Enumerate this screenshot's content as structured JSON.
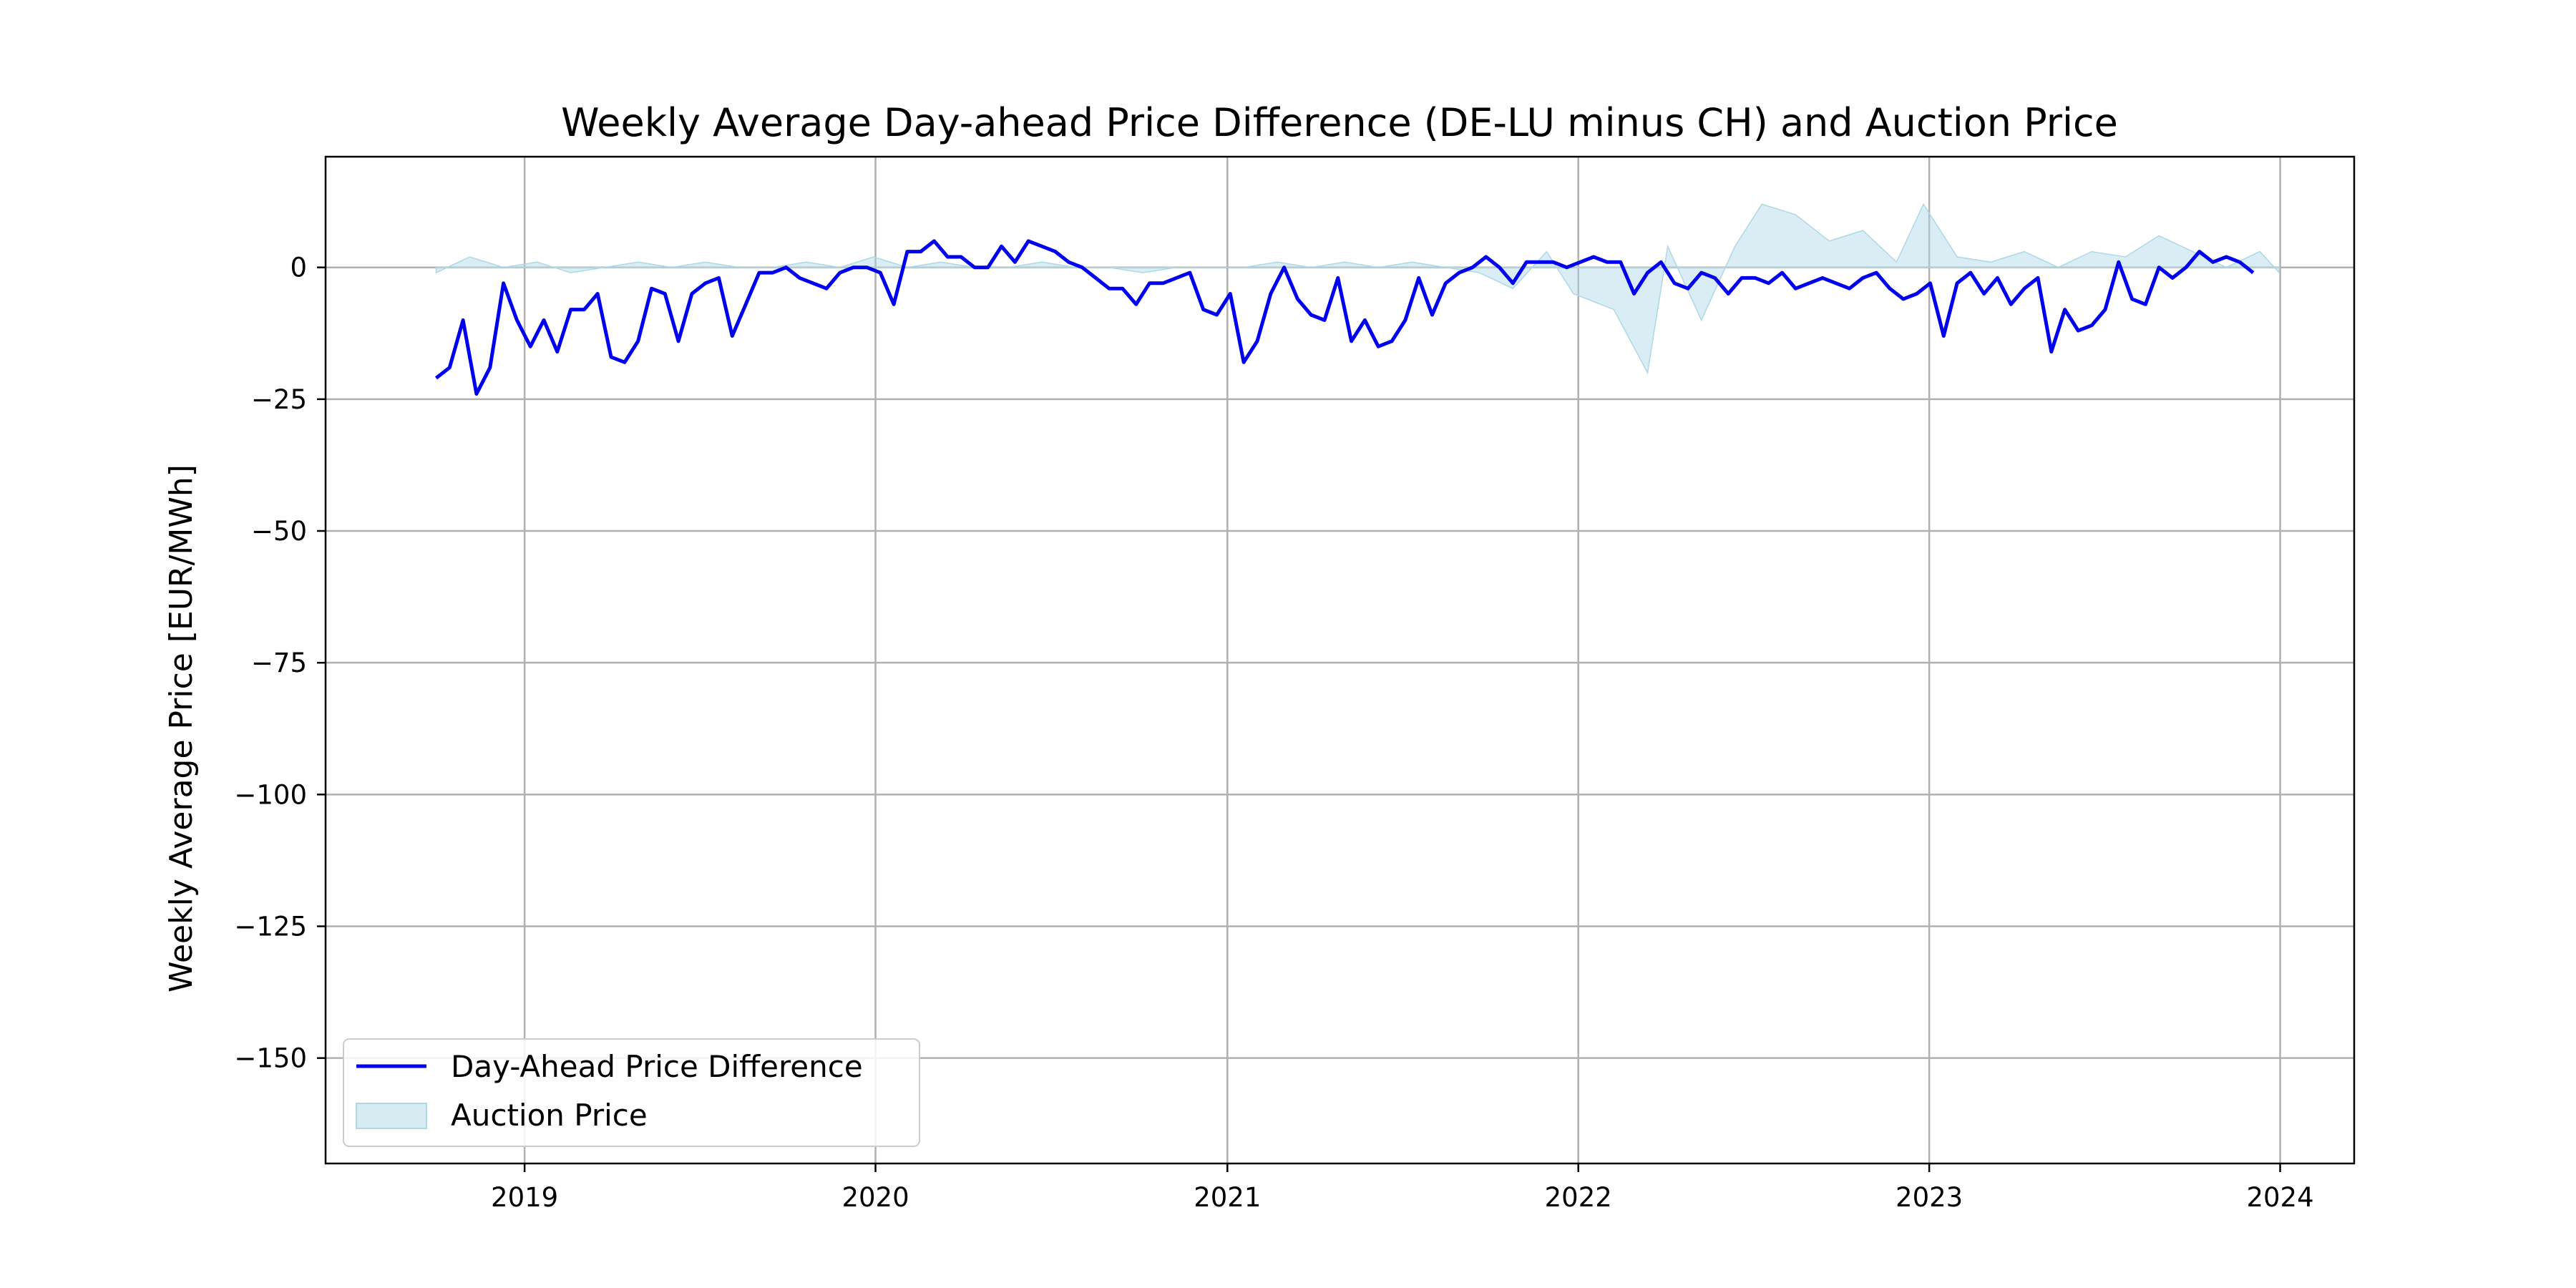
{
  "chart_data": {
    "type": "line",
    "title": "Weekly Average Day-ahead Price Difference (DE-LU minus CH) and Auction Price",
    "xlabel": "",
    "ylabel": "Weekly Average Price [EUR/MWh]",
    "xlim": [
      "2018-06-08",
      "2024-03-18"
    ],
    "ylim": [
      -170,
      21
    ],
    "x_ticks": [
      "2019",
      "2020",
      "2021",
      "2022",
      "2023",
      "2024"
    ],
    "x_tick_dates": [
      "2019-01-01",
      "2020-01-01",
      "2021-01-01",
      "2022-01-01",
      "2023-01-01",
      "2024-01-01"
    ],
    "y_ticks": [
      0,
      -25,
      -50,
      -75,
      -100,
      -125,
      -150
    ],
    "y_tick_labels": [
      "0",
      "−25",
      "−50",
      "−75",
      "−100",
      "−125",
      "−150"
    ],
    "grid": true,
    "legend_position": "lower-left",
    "series": [
      {
        "name": "Day-Ahead Price Difference",
        "kind": "line",
        "color": "#0000ee",
        "points": [
          [
            "2018-10-01",
            -21
          ],
          [
            "2018-10-15",
            -19
          ],
          [
            "2018-10-29",
            -10
          ],
          [
            "2018-11-12",
            -24
          ],
          [
            "2018-11-26",
            -19
          ],
          [
            "2018-12-10",
            -3
          ],
          [
            "2018-12-24",
            -10
          ],
          [
            "2019-01-07",
            -15
          ],
          [
            "2019-01-21",
            -10
          ],
          [
            "2019-02-04",
            -16
          ],
          [
            "2019-02-18",
            -8
          ],
          [
            "2019-03-04",
            -8
          ],
          [
            "2019-03-18",
            -5
          ],
          [
            "2019-04-01",
            -17
          ],
          [
            "2019-04-15",
            -18
          ],
          [
            "2019-04-29",
            -14
          ],
          [
            "2019-05-13",
            -4
          ],
          [
            "2019-05-27",
            -5
          ],
          [
            "2019-06-10",
            -14
          ],
          [
            "2019-06-24",
            -5
          ],
          [
            "2019-07-08",
            -3
          ],
          [
            "2019-07-22",
            -2
          ],
          [
            "2019-08-05",
            -13
          ],
          [
            "2019-08-19",
            -7
          ],
          [
            "2019-09-02",
            -1
          ],
          [
            "2019-09-16",
            -1
          ],
          [
            "2019-09-30",
            0
          ],
          [
            "2019-10-14",
            -2
          ],
          [
            "2019-10-28",
            -3
          ],
          [
            "2019-11-11",
            -4
          ],
          [
            "2019-11-25",
            -1
          ],
          [
            "2019-12-09",
            0
          ],
          [
            "2019-12-23",
            0
          ],
          [
            "2020-01-06",
            -1
          ],
          [
            "2020-01-20",
            -7
          ],
          [
            "2020-02-03",
            3
          ],
          [
            "2020-02-17",
            3
          ],
          [
            "2020-03-02",
            5
          ],
          [
            "2020-03-16",
            2
          ],
          [
            "2020-03-30",
            2
          ],
          [
            "2020-04-13",
            0
          ],
          [
            "2020-04-27",
            0
          ],
          [
            "2020-05-11",
            4
          ],
          [
            "2020-05-25",
            1
          ],
          [
            "2020-06-08",
            5
          ],
          [
            "2020-06-22",
            4
          ],
          [
            "2020-07-06",
            3
          ],
          [
            "2020-07-20",
            1
          ],
          [
            "2020-08-03",
            0
          ],
          [
            "2020-08-17",
            -2
          ],
          [
            "2020-08-31",
            -4
          ],
          [
            "2020-09-14",
            -4
          ],
          [
            "2020-09-28",
            -7
          ],
          [
            "2020-10-12",
            -3
          ],
          [
            "2020-10-26",
            -3
          ],
          [
            "2020-11-09",
            -2
          ],
          [
            "2020-11-23",
            -1
          ],
          [
            "2020-12-07",
            -8
          ],
          [
            "2020-12-21",
            -9
          ],
          [
            "2021-01-04",
            -5
          ],
          [
            "2021-01-18",
            -18
          ],
          [
            "2021-02-01",
            -14
          ],
          [
            "2021-02-15",
            -5
          ],
          [
            "2021-03-01",
            0
          ],
          [
            "2021-03-15",
            -6
          ],
          [
            "2021-03-29",
            -9
          ],
          [
            "2021-04-12",
            -10
          ],
          [
            "2021-04-26",
            -2
          ],
          [
            "2021-05-10",
            -14
          ],
          [
            "2021-05-24",
            -10
          ],
          [
            "2021-06-07",
            -15
          ],
          [
            "2021-06-21",
            -14
          ],
          [
            "2021-07-05",
            -10
          ],
          [
            "2021-07-19",
            -2
          ],
          [
            "2021-08-02",
            -9
          ],
          [
            "2021-08-16",
            -3
          ],
          [
            "2021-08-30",
            -1
          ],
          [
            "2021-09-13",
            0
          ],
          [
            "2021-09-27",
            2
          ],
          [
            "2021-10-11",
            0
          ],
          [
            "2021-10-25",
            -3
          ],
          [
            "2021-11-08",
            1
          ],
          [
            "2021-11-22",
            1
          ],
          [
            "2021-12-06",
            1
          ],
          [
            "2021-12-20",
            0
          ],
          [
            "2022-01-03",
            1
          ],
          [
            "2022-01-17",
            2
          ],
          [
            "2022-01-31",
            1
          ],
          [
            "2022-02-14",
            1
          ],
          [
            "2022-02-28",
            -5
          ],
          [
            "2022-03-14",
            -1
          ],
          [
            "2022-03-28",
            1
          ],
          [
            "2022-04-11",
            -3
          ],
          [
            "2022-04-25",
            -4
          ],
          [
            "2022-05-09",
            -1
          ],
          [
            "2022-05-23",
            -2
          ],
          [
            "2022-06-06",
            -5
          ],
          [
            "2022-06-20",
            -2
          ],
          [
            "2022-07-04",
            -2
          ],
          [
            "2022-07-18",
            -3
          ],
          [
            "2022-08-01",
            -1
          ],
          [
            "2022-08-15",
            -4
          ],
          [
            "2022-08-29",
            -3
          ],
          [
            "2022-09-12",
            -2
          ],
          [
            "2022-09-26",
            -3
          ],
          [
            "2022-10-10",
            -4
          ],
          [
            "2022-10-24",
            -2
          ],
          [
            "2022-11-07",
            -1
          ],
          [
            "2022-11-21",
            -4
          ],
          [
            "2022-12-05",
            -6
          ],
          [
            "2022-12-19",
            -5
          ],
          [
            "2023-01-02",
            -3
          ],
          [
            "2023-01-16",
            -13
          ],
          [
            "2023-01-30",
            -3
          ],
          [
            "2023-02-13",
            -1
          ],
          [
            "2023-02-27",
            -5
          ],
          [
            "2023-03-13",
            -2
          ],
          [
            "2023-03-27",
            -7
          ],
          [
            "2023-04-10",
            -4
          ],
          [
            "2023-04-24",
            -2
          ],
          [
            "2023-05-08",
            -16
          ],
          [
            "2023-05-22",
            -8
          ],
          [
            "2023-06-05",
            -12
          ],
          [
            "2023-06-19",
            -11
          ],
          [
            "2023-07-03",
            -8
          ],
          [
            "2023-07-17",
            1
          ],
          [
            "2023-07-31",
            -6
          ],
          [
            "2023-08-14",
            -7
          ],
          [
            "2023-08-28",
            0
          ],
          [
            "2023-09-11",
            -2
          ],
          [
            "2023-09-25",
            0
          ],
          [
            "2023-10-09",
            3
          ],
          [
            "2023-10-23",
            1
          ],
          [
            "2023-11-06",
            2
          ],
          [
            "2023-11-20",
            1
          ],
          [
            "2023-12-04",
            -1
          ]
        ]
      },
      {
        "name": "Auction Price",
        "kind": "area",
        "color": "#add8e6",
        "points": [
          [
            "2018-10-01",
            -1
          ],
          [
            "2018-11-05",
            2
          ],
          [
            "2018-12-10",
            0
          ],
          [
            "2019-01-14",
            1
          ],
          [
            "2019-02-18",
            -1
          ],
          [
            "2019-03-25",
            0
          ],
          [
            "2019-04-29",
            1
          ],
          [
            "2019-06-03",
            0
          ],
          [
            "2019-07-08",
            1
          ],
          [
            "2019-08-12",
            0
          ],
          [
            "2019-09-16",
            0
          ],
          [
            "2019-10-21",
            1
          ],
          [
            "2019-11-25",
            0
          ],
          [
            "2019-12-30",
            2
          ],
          [
            "2020-02-03",
            0
          ],
          [
            "2020-03-09",
            1
          ],
          [
            "2020-04-13",
            0
          ],
          [
            "2020-05-18",
            0
          ],
          [
            "2020-06-22",
            1
          ],
          [
            "2020-07-27",
            0
          ],
          [
            "2020-08-31",
            0
          ],
          [
            "2020-10-05",
            -1
          ],
          [
            "2020-11-09",
            0
          ],
          [
            "2020-12-14",
            0
          ],
          [
            "2021-01-18",
            0
          ],
          [
            "2021-02-22",
            1
          ],
          [
            "2021-03-29",
            0
          ],
          [
            "2021-05-03",
            1
          ],
          [
            "2021-06-07",
            0
          ],
          [
            "2021-07-12",
            1
          ],
          [
            "2021-08-16",
            0
          ],
          [
            "2021-09-20",
            -1
          ],
          [
            "2021-10-25",
            -4
          ],
          [
            "2021-11-29",
            3
          ],
          [
            "2021-12-27",
            -5
          ],
          [
            "2022-02-07",
            -8
          ],
          [
            "2022-03-14",
            -20
          ],
          [
            "2022-04-04",
            4
          ],
          [
            "2022-05-09",
            -10
          ],
          [
            "2022-06-13",
            4
          ],
          [
            "2022-07-11",
            12
          ],
          [
            "2022-08-15",
            10
          ],
          [
            "2022-09-19",
            5
          ],
          [
            "2022-10-24",
            7
          ],
          [
            "2022-11-28",
            1
          ],
          [
            "2022-12-26",
            12
          ],
          [
            "2023-01-30",
            2
          ],
          [
            "2023-03-06",
            1
          ],
          [
            "2023-04-10",
            3
          ],
          [
            "2023-05-15",
            0
          ],
          [
            "2023-06-19",
            3
          ],
          [
            "2023-07-24",
            2
          ],
          [
            "2023-08-28",
            6
          ],
          [
            "2023-10-02",
            3
          ],
          [
            "2023-11-06",
            0
          ],
          [
            "2023-12-11",
            3
          ],
          [
            "2023-12-31",
            -1
          ]
        ]
      }
    ]
  }
}
